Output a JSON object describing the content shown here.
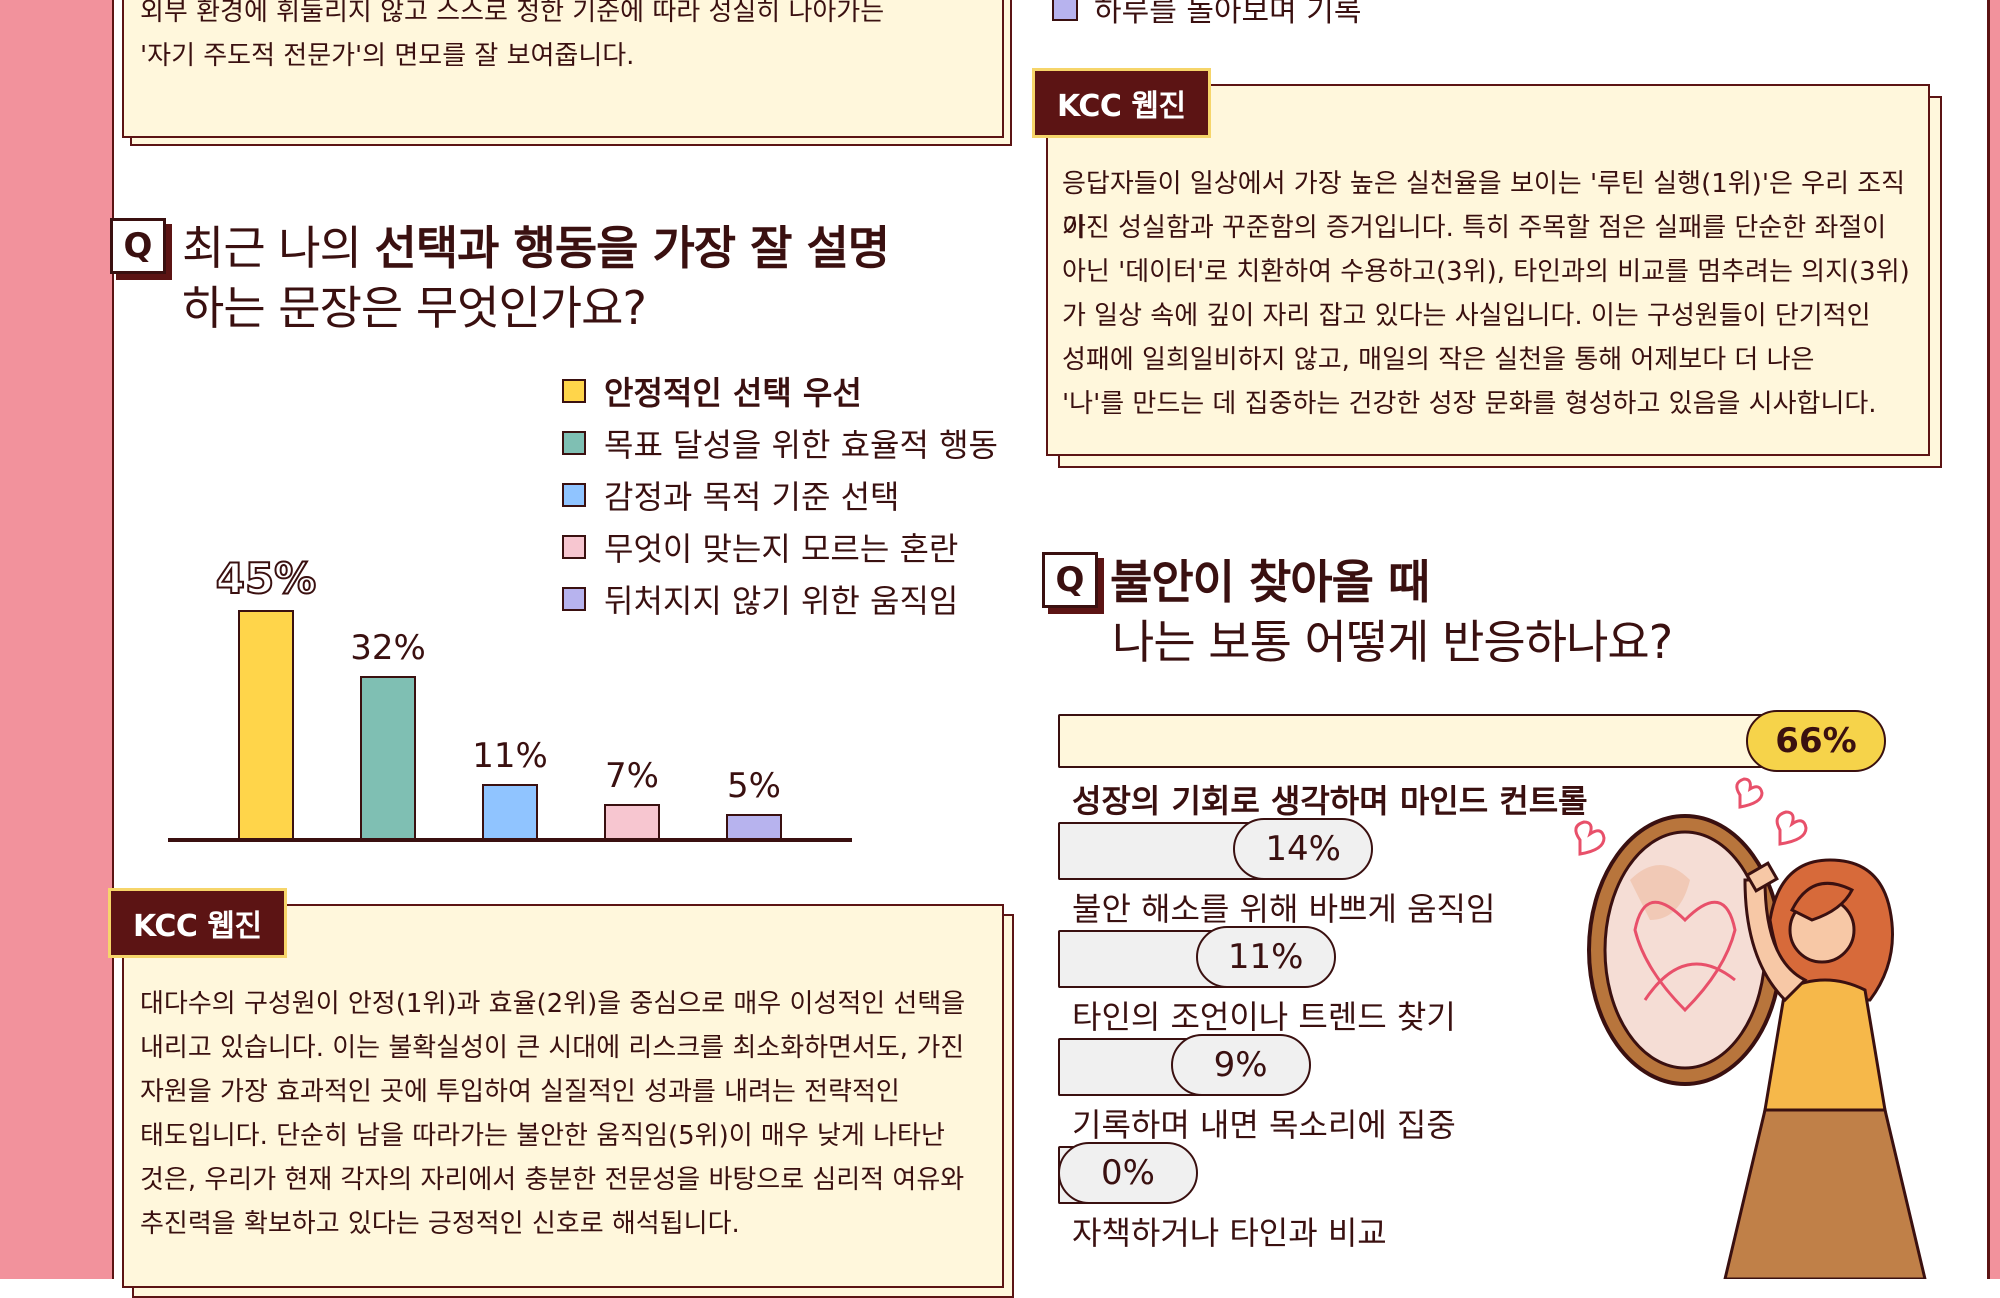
{
  "top_box": {
    "lines": [
      "외부 환경에 휘둘리지 않고 스스로 정한 기준에 따라 성실히 나아가는",
      "'자기 주도적 전문가'의 면모를 잘 보여줍니다."
    ]
  },
  "top_right_legend": "하루를 돌아보며 기록",
  "right_box": {
    "tag": "KCC 웹진",
    "lines": [
      "응답자들이 일상에서 가장 높은 실천율을 보이는 '루틴 실행(1위)'은 우리 조직이",
      "가진 성실함과 꾸준함의 증거입니다. 특히 주목할 점은 실패를 단순한 좌절이",
      "아닌 '데이터'로 치환하여 수용하고(3위), 타인과의 비교를 멈추려는 의지(3위)",
      "가 일상 속에 깊이 자리 잡고 있다는 사실입니다. 이는 구성원들이 단기적인",
      "성패에 일희일비하지 않고, 매일의 작은 실천을 통해 어제보다 더 나은",
      "'나'를 만드는 데 집중하는 건강한 성장 문화를 형성하고 있음을 시사합니다."
    ]
  },
  "q1": {
    "icon": "Q",
    "title_prefix": "최근 나의 ",
    "title_bold": "선택과 행동을 가장 잘 설명",
    "title_line2": "하는 문장은 무엇인가요?"
  },
  "q2": {
    "icon": "Q",
    "title_bold": "불안이 찾아올 때",
    "title_line2": "나는 보통 어떻게 반응하나요?"
  },
  "chart_data": [
    {
      "type": "bar",
      "categories": [
        "안정적인 선택 우선",
        "목표 달성을 위한 효율적 행동",
        "감정과 목적 기준 선택",
        "무엇이 맞는지 모르는 혼란",
        "뒤처지지 않기 위한 움직임"
      ],
      "values": [
        45,
        32,
        11,
        7,
        5
      ],
      "value_labels": [
        "45%",
        "32%",
        "11%",
        "7%",
        "5%"
      ],
      "colors": [
        "#ffd54a",
        "#7fbfb3",
        "#90c4ff",
        "#f7c6d0",
        "#b7b3ee"
      ],
      "legend_position": "top-right"
    },
    {
      "type": "bar",
      "orientation": "horizontal",
      "categories": [
        "성장의 기회로 생각하며 마인드 컨트롤",
        "불안 해소를 위해 바쁘게 움직임",
        "타인의 조언이나 트렌드 찾기",
        "기록하며 내면 목소리에 집중",
        "자책하거나 타인과 비교"
      ],
      "values": [
        66,
        14,
        11,
        9,
        0
      ],
      "value_labels": [
        "66%",
        "14%",
        "11%",
        "9%",
        "0%"
      ]
    }
  ],
  "left_box": {
    "tag": "KCC 웹진",
    "lines": [
      "대다수의 구성원이 안정(1위)과 효율(2위)을 중심으로 매우 이성적인 선택을",
      "내리고 있습니다. 이는 불확실성이 큰 시대에 리스크를 최소화하면서도, 가진",
      "자원을 가장 효과적인 곳에 투입하여 실질적인 성과를 내려는 전략적인",
      "태도입니다. 단순히 남을 따라가는 불안한 움직임(5위)이 매우 낮게 나타난",
      "것은, 우리가 현재 각자의 자리에서 충분한 전문성을 바탕으로 심리적 여유와",
      "추진력을 확보하고 있다는 긍정적인 신호로 해석됩니다."
    ]
  }
}
